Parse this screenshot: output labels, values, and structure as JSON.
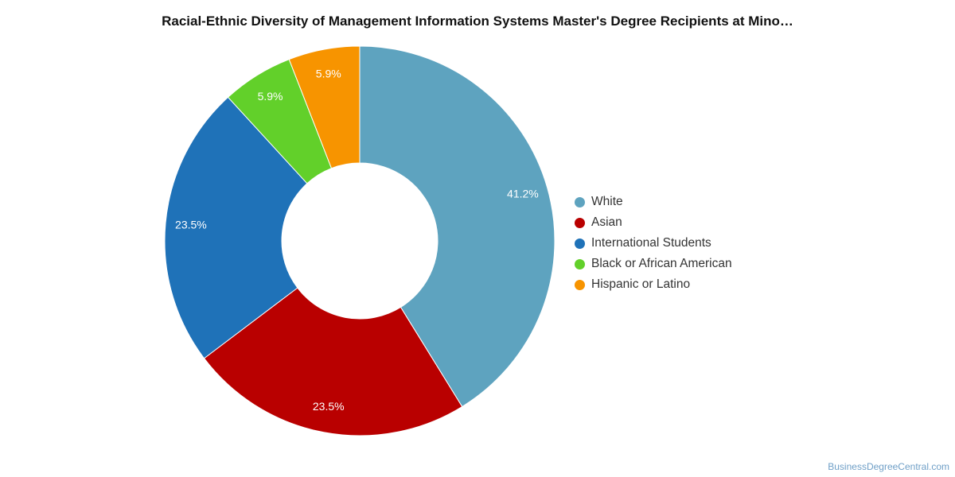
{
  "chart_data": {
    "type": "pie",
    "title": "Racial-Ethnic Diversity of Management Information Systems Master's Degree Recipients at Mino…",
    "donut": true,
    "legend_position": "right",
    "slices": [
      {
        "label": "White",
        "value": 41.2,
        "display": "41.2%",
        "color": "#5ea3bf"
      },
      {
        "label": "Asian",
        "value": 23.5,
        "display": "23.5%",
        "color": "#b90000"
      },
      {
        "label": "International Students",
        "value": 23.5,
        "display": "23.5%",
        "color": "#1f72b8"
      },
      {
        "label": "Black or African American",
        "value": 5.9,
        "display": "5.9%",
        "color": "#62d02a"
      },
      {
        "label": "Hispanic or Latino",
        "value": 5.9,
        "display": "5.9%",
        "color": "#f79400"
      }
    ]
  },
  "source": "BusinessDegreeCentral.com"
}
